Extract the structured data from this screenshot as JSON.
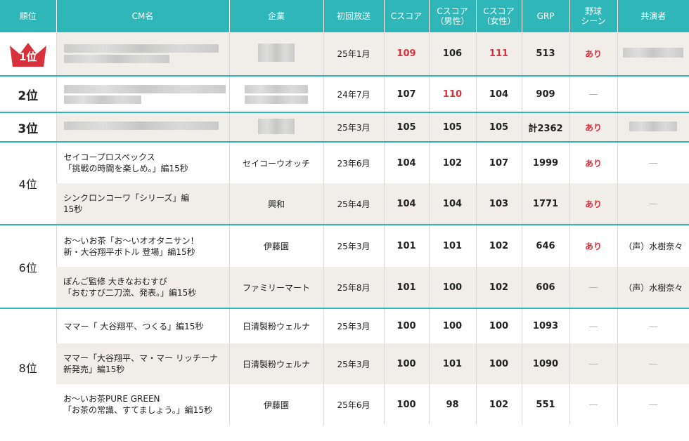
{
  "headers": {
    "rank": "順位",
    "cm": "CM名",
    "company": "企業",
    "first_air": "初回放送",
    "c_score": "Cスコア",
    "c_male_1": "Cスコア",
    "c_male_2": "（男性）",
    "c_female_1": "Cスコア",
    "c_female_2": "（女性）",
    "grp": "GRP",
    "baseball_1": "野球",
    "baseball_2": "シーン",
    "cast": "共演者"
  },
  "colors": {
    "header_bg": "#2fb6b9",
    "highlight": "#d8313c",
    "row_gray": "#f1eeea"
  },
  "rows": [
    {
      "rank": "1位",
      "date": "25年1月",
      "c": "109",
      "cm_m": "106",
      "cm_f": "111",
      "grp": "513",
      "bb": "あり",
      "cast": ""
    },
    {
      "rank": "2位",
      "date": "24年7月",
      "c": "107",
      "cm_m": "110",
      "cm_f": "104",
      "grp": "909",
      "bb": "―",
      "cast": ""
    },
    {
      "rank": "3位",
      "date": "25年3月",
      "c": "105",
      "cm_m": "105",
      "cm_f": "105",
      "grp": "計2362",
      "bb": "あり",
      "cast": ""
    },
    {
      "rank": "4位",
      "cm1": "セイコープロスペックス",
      "cm2": "「挑戦の時間を楽しめ。」編15秒",
      "company": "セイコーウオッチ",
      "date": "23年6月",
      "c": "104",
      "cm_m": "102",
      "cm_f": "107",
      "grp": "1999",
      "bb": "あり",
      "cast": "―"
    },
    {
      "cm1": "シンクロンコーワ「シリーズ」編",
      "cm2": "15秒",
      "company": "興和",
      "date": "25年4月",
      "c": "104",
      "cm_m": "104",
      "cm_f": "103",
      "grp": "1771",
      "bb": "あり",
      "cast": "―"
    },
    {
      "rank": "6位",
      "cm1": "お～いお茶「お～いオオタニサン！",
      "cm2": "新・大谷翔平ボトル 登場」編15秒",
      "company": "伊藤園",
      "date": "25年3月",
      "c": "101",
      "cm_m": "101",
      "cm_f": "102",
      "grp": "646",
      "bb": "あり",
      "cast": "（声）水樹奈々"
    },
    {
      "cm1": "ぽんご監修 大きなおむすび",
      "cm2": "「おむすび二刀流、発表。」編15秒",
      "company": "ファミリーマート",
      "date": "25年8月",
      "c": "101",
      "cm_m": "100",
      "cm_f": "102",
      "grp": "606",
      "bb": "―",
      "cast": "（声）水樹奈々"
    },
    {
      "rank": "8位",
      "cm1": "ママー「 大谷翔平、つくる」編15秒",
      "cm2": "",
      "company": "日清製粉ウェルナ",
      "date": "25年3月",
      "c": "100",
      "cm_m": "100",
      "cm_f": "100",
      "grp": "1093",
      "bb": "―",
      "cast": "―"
    },
    {
      "cm1": "ママー「大谷翔平、マ・マー リッチーナ",
      "cm2": "新発売」編15秒",
      "company": "日清製粉ウェルナ",
      "date": "25年3月",
      "c": "100",
      "cm_m": "101",
      "cm_f": "100",
      "grp": "1090",
      "bb": "―",
      "cast": "―"
    },
    {
      "cm1": "お～いお茶PURE GREEN",
      "cm2": "「お茶の常識、すてましょう。」編15秒",
      "company": "伊藤園",
      "date": "25年6月",
      "c": "100",
      "cm_m": "98",
      "cm_f": "102",
      "grp": "551",
      "bb": "―",
      "cast": "―"
    }
  ]
}
